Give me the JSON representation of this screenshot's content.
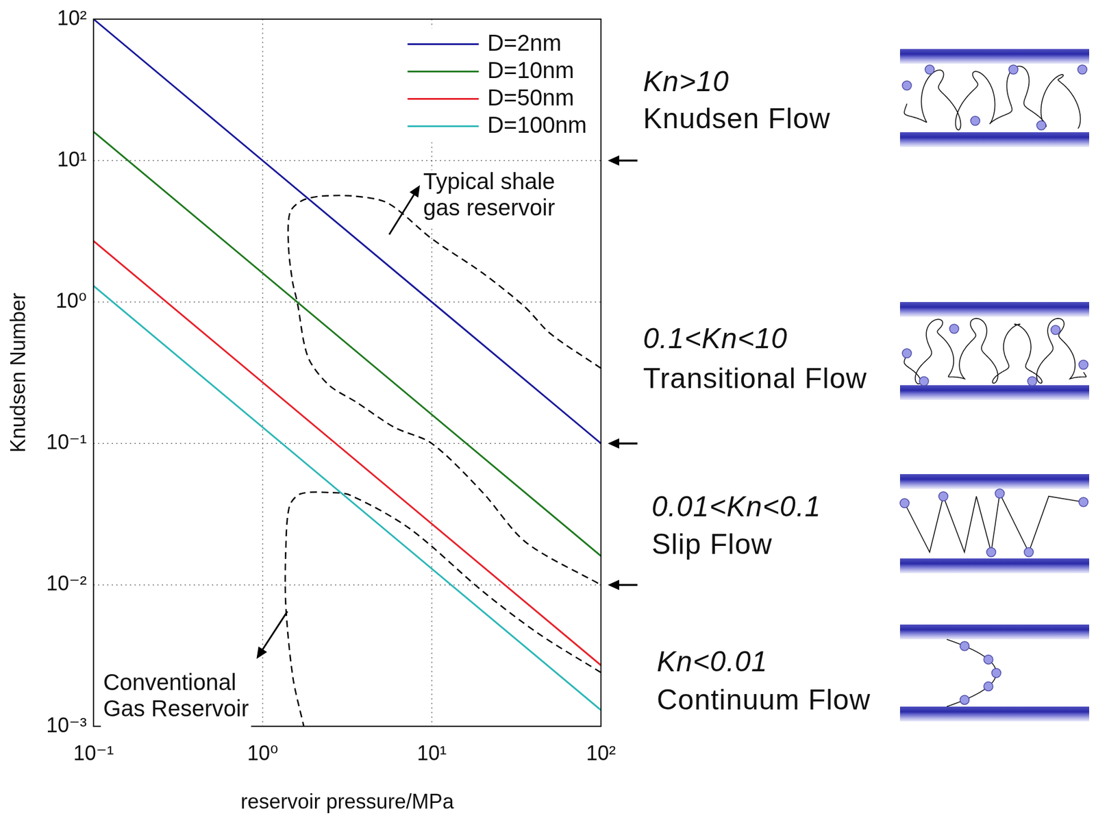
{
  "chart_data": {
    "type": "line",
    "x_label": "reservoir pressure/MPa",
    "y_label": "Knudsen Number",
    "log": true,
    "grid": true,
    "legend": "top-right",
    "xlim": [
      0.1,
      100
    ],
    "ylim": [
      0.001,
      100
    ],
    "xticks": [
      {
        "value": 0.1,
        "label": "10⁻¹"
      },
      {
        "value": 1,
        "label": "10⁰"
      },
      {
        "value": 10,
        "label": "10¹"
      },
      {
        "value": 100,
        "label": "10²"
      }
    ],
    "yticks": [
      {
        "value": 0.001,
        "label": "10⁻³"
      },
      {
        "value": 0.01,
        "label": "10⁻²"
      },
      {
        "value": 0.1,
        "label": "10⁻¹"
      },
      {
        "value": 1,
        "label": "10⁰"
      },
      {
        "value": 10,
        "label": "10¹"
      },
      {
        "value": 100,
        "label": "10²"
      }
    ],
    "x": [
      0.1,
      1,
      10,
      100
    ],
    "series": [
      {
        "name": "D=2nm",
        "color": "#1a1a9c",
        "values": [
          100,
          10,
          1,
          0.1
        ]
      },
      {
        "name": "D=10nm",
        "color": "#1f7a1f",
        "values": [
          16,
          1.6,
          0.16,
          0.016
        ]
      },
      {
        "name": "D=50nm",
        "color": "#e8212b",
        "values": [
          2.7,
          0.27,
          0.027,
          0.0027
        ]
      },
      {
        "name": "D=100nm",
        "color": "#2cb7b7",
        "values": [
          1.3,
          0.13,
          0.013,
          0.0013
        ]
      }
    ],
    "regions": [
      {
        "label": [
          "Typical shale",
          "gas reservoir"
        ],
        "color": "#000000",
        "line_style": "dashed",
        "x": [
          100,
          50,
          35.6,
          20,
          10,
          5.5,
          3.5,
          2.2,
          1.7,
          1.45,
          1.42,
          1.5,
          1.6,
          1.85,
          2.45,
          3.6,
          6.0,
          10,
          20,
          36,
          100
        ],
        "values": [
          0.34,
          0.6,
          0.92,
          1.6,
          2.8,
          5.0,
          5.6,
          5.6,
          5.2,
          4.3,
          2.5,
          1.4,
          1.0,
          0.41,
          0.26,
          0.195,
          0.13,
          0.1,
          0.045,
          0.02,
          0.01
        ],
        "label_at": [
          8.9,
          8.4
        ],
        "arrow_from": [
          5.6,
          3.0
        ],
        "arrow_to": [
          8.5,
          6.7
        ]
      },
      {
        "label": [
          "Conventional",
          "Gas Reservoir"
        ],
        "color": "#000000",
        "line_style": "dashed",
        "x": [
          100,
          43,
          20,
          7.4,
          3.3,
          2.5,
          1.67,
          1.44,
          1.37,
          1.37,
          1.51,
          1.75
        ],
        "values": [
          0.0024,
          0.0045,
          0.009,
          0.025,
          0.043,
          0.045,
          0.044,
          0.036,
          0.018,
          0.0071,
          0.0022,
          0.001
        ],
        "label_at": [
          0.114,
          0.0024
        ],
        "arrow_from": [
          1.4,
          0.0065
        ],
        "arrow_to": [
          0.92,
          0.003
        ]
      }
    ],
    "regime_boundaries": [
      10,
      0.1,
      0.01
    ],
    "regimes": [
      {
        "condition": "Kn>10",
        "name": "Knudsen Flow"
      },
      {
        "condition": "0.1<Kn<10",
        "name": "Transitional Flow"
      },
      {
        "condition": "0.01<Kn<0.1",
        "name": "Slip Flow"
      },
      {
        "condition": "Kn<0.01",
        "name": "Continuum Flow"
      }
    ]
  }
}
